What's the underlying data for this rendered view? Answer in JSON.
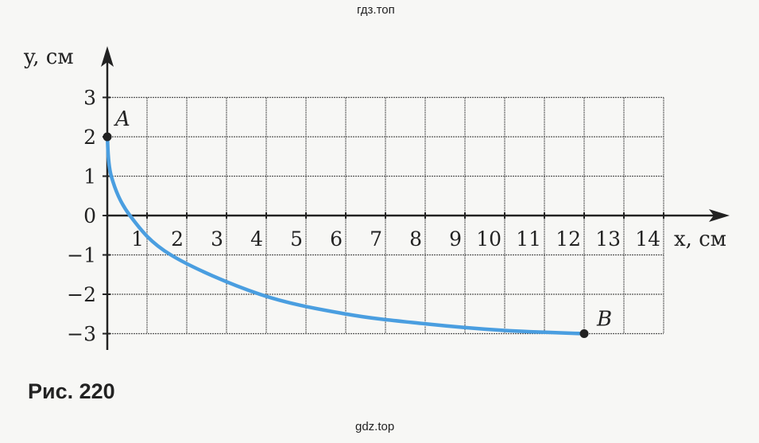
{
  "watermark_top": "гдз.топ",
  "watermark_bottom": "gdz.top",
  "caption": "Рис. 220",
  "chart_data": {
    "type": "line",
    "title": "",
    "xlabel": "x, см",
    "ylabel": "y, см",
    "xlim": [
      0,
      14
    ],
    "ylim": [
      -3,
      3
    ],
    "grid": true,
    "x_ticks": [
      "1",
      "2",
      "3",
      "4",
      "5",
      "6",
      "7",
      "8",
      "9",
      "10",
      "11",
      "12",
      "13",
      "14"
    ],
    "y_ticks": [
      "3",
      "2",
      "1",
      "0",
      "−1",
      "−2",
      "−3"
    ],
    "line_color": "#4a9ee0",
    "series": [
      {
        "x": [
          0,
          0.1,
          0.57,
          1.6,
          3.84,
          6,
          8,
          10,
          12
        ],
        "y": [
          2,
          1,
          0,
          -1,
          -2,
          -2.5,
          -2.75,
          -2.92,
          -3
        ]
      }
    ],
    "points": [
      {
        "label": "A",
        "x": 0,
        "y": 2
      },
      {
        "label": "B",
        "x": 12,
        "y": -3
      }
    ]
  }
}
